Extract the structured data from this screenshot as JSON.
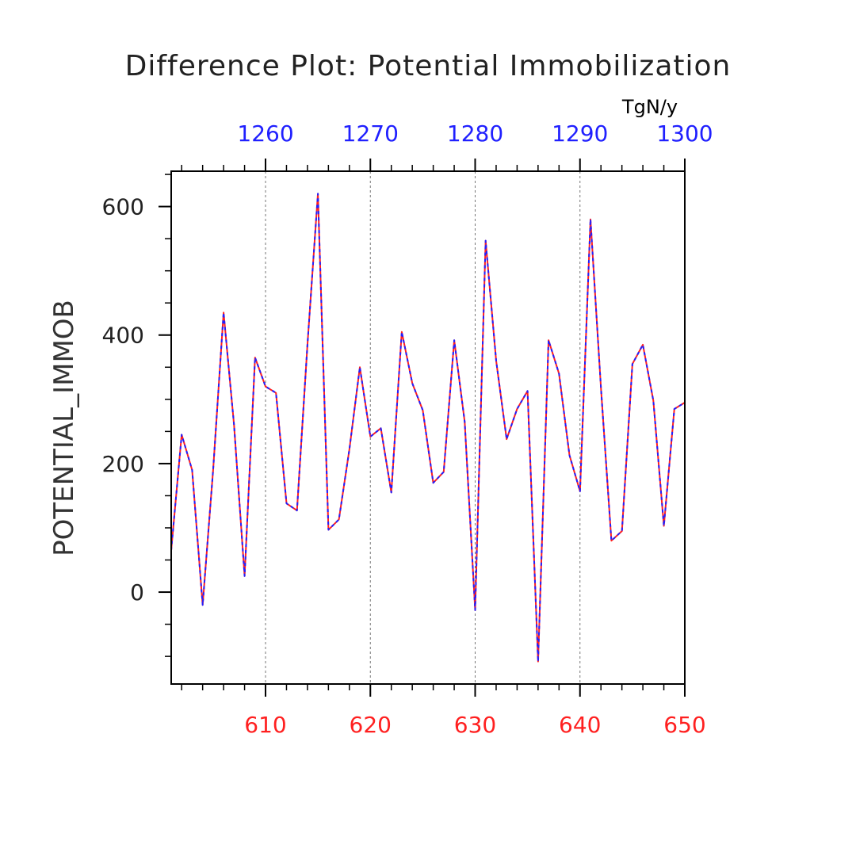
{
  "chart_data": {
    "type": "line",
    "title": "Difference Plot: Potential Immobilization",
    "ylabel": "POTENTIAL_IMMOB",
    "units": "TgN/y",
    "xlim": [
      601,
      650
    ],
    "ylim": [
      -143,
      655
    ],
    "grid": "vertical dashed lines at major x ticks",
    "x_bottom": {
      "color": "#ff2020",
      "ticks": [
        610,
        620,
        630,
        640,
        650
      ],
      "tick_labels": [
        "610",
        "620",
        "630",
        "640",
        "650"
      ]
    },
    "x_top": {
      "color": "#2020ff",
      "ticks": [
        1260,
        1270,
        1280,
        1290,
        1300
      ],
      "tick_labels": [
        "1260",
        "1270",
        "1280",
        "1290",
        "1300"
      ],
      "offset_from_bottom": 650
    },
    "y_ticks": [
      0,
      200,
      400,
      600
    ],
    "y_tick_labels": [
      "0",
      "200",
      "400",
      "600"
    ],
    "x": [
      601,
      602,
      603,
      604,
      605,
      606,
      607,
      608,
      609,
      610,
      611,
      612,
      613,
      614,
      615,
      616,
      617,
      618,
      619,
      620,
      621,
      622,
      623,
      624,
      625,
      626,
      627,
      628,
      629,
      630,
      631,
      632,
      633,
      634,
      635,
      636,
      637,
      638,
      639,
      640,
      641,
      642,
      643,
      644,
      645,
      646,
      647,
      648,
      649,
      650
    ],
    "series": [
      {
        "color": "#ff2020",
        "style": "solid",
        "values": [
          65,
          245,
          190,
          -20,
          190,
          435,
          260,
          25,
          365,
          320,
          310,
          138,
          127,
          385,
          620,
          97,
          113,
          222,
          350,
          242,
          255,
          155,
          405,
          325,
          283,
          170,
          187,
          392,
          265,
          -28,
          547,
          360,
          238,
          285,
          313,
          -108,
          392,
          340,
          213,
          157,
          580,
          318,
          80,
          95,
          355,
          385,
          298,
          103,
          285,
          295
        ]
      },
      {
        "color": "#2020ff",
        "style": "dashed",
        "values": [
          65,
          245,
          190,
          -20,
          190,
          435,
          260,
          25,
          365,
          320,
          310,
          138,
          127,
          385,
          620,
          97,
          113,
          222,
          350,
          242,
          255,
          155,
          405,
          325,
          283,
          170,
          187,
          392,
          265,
          -28,
          547,
          360,
          238,
          285,
          313,
          -108,
          392,
          340,
          213,
          157,
          580,
          318,
          80,
          95,
          355,
          385,
          298,
          103,
          285,
          295
        ]
      }
    ]
  }
}
